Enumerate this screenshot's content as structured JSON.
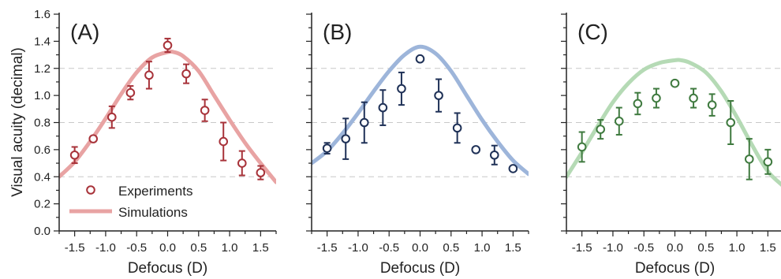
{
  "figure": {
    "ylabel": "Visual acuity (decimal)",
    "legend": {
      "experiments": "Experiments",
      "simulations": "Simulations",
      "placement": "bottom-left of panel A"
    }
  },
  "chart_data": [
    {
      "type": "line",
      "panel_label": "(A)",
      "xlabel": "Defocus (D)",
      "ylabel": "Visual acuity (decimal)",
      "xlim": [
        -1.75,
        1.75
      ],
      "ylim": [
        0,
        1.6
      ],
      "x_ticks": [
        -1.5,
        -1.0,
        -0.5,
        0.0,
        0.5,
        1.0,
        1.5
      ],
      "x_tick_labels": [
        "-1.5",
        "-1.0",
        "-0.5",
        "0.0",
        "0.5",
        "1.0",
        "1.5"
      ],
      "y_ticks": [
        0,
        0.2,
        0.4,
        0.6,
        0.8,
        1.0,
        1.2,
        1.4,
        1.6
      ],
      "y_tick_labels": [
        "0.0",
        "0.2",
        "0.4",
        "0.6",
        "0.8",
        "1.0",
        "1.2",
        "1.4",
        "1.6"
      ],
      "gridlines_y": [
        0.4,
        0.8,
        1.2
      ],
      "colors": {
        "simulation": "#e8a3a3",
        "experiment": "#a8333a"
      },
      "series": [
        {
          "name": "Experiments",
          "kind": "points-with-error",
          "x": [
            -1.5,
            -1.2,
            -0.9,
            -0.6,
            -0.3,
            0.0,
            0.3,
            0.6,
            0.9,
            1.2,
            1.5
          ],
          "y": [
            0.56,
            0.68,
            0.84,
            1.02,
            1.15,
            1.37,
            1.16,
            0.89,
            0.66,
            0.5,
            0.43
          ],
          "err": [
            0.06,
            0.02,
            0.08,
            0.05,
            0.1,
            0.05,
            0.07,
            0.08,
            0.14,
            0.09,
            0.05
          ]
        },
        {
          "name": "Simulations",
          "kind": "curve",
          "x": [
            -1.75,
            -1.5,
            -1.25,
            -1.0,
            -0.75,
            -0.5,
            -0.25,
            0.0,
            0.1,
            0.25,
            0.5,
            0.75,
            1.0,
            1.25,
            1.5,
            1.75
          ],
          "y": [
            0.4,
            0.51,
            0.66,
            0.83,
            1.01,
            1.17,
            1.28,
            1.32,
            1.32,
            1.29,
            1.18,
            1.0,
            0.82,
            0.65,
            0.5,
            0.36
          ]
        }
      ]
    },
    {
      "type": "line",
      "panel_label": "(B)",
      "xlabel": "Defocus (D)",
      "xlim": [
        -1.75,
        1.75
      ],
      "ylim": [
        0,
        1.6
      ],
      "x_ticks": [
        -1.5,
        -1.0,
        -0.5,
        0.0,
        0.5,
        1.0,
        1.5
      ],
      "x_tick_labels": [
        "-1.5",
        "-1.0",
        "-0.5",
        "0.0",
        "0.5",
        "1.0",
        "1.5"
      ],
      "gridlines_y": [
        0.4,
        0.8,
        1.2
      ],
      "colors": {
        "simulation": "#9db5da",
        "experiment": "#1f3157"
      },
      "series": [
        {
          "name": "Experiments",
          "kind": "points-with-error",
          "x": [
            -1.5,
            -1.2,
            -0.9,
            -0.6,
            -0.3,
            0.0,
            0.3,
            0.6,
            0.9,
            1.2,
            1.5
          ],
          "y": [
            0.61,
            0.68,
            0.8,
            0.91,
            1.05,
            1.27,
            1.0,
            0.76,
            0.6,
            0.56,
            0.46
          ],
          "err": [
            0.04,
            0.15,
            0.15,
            0.13,
            0.12,
            0.0,
            0.12,
            0.11,
            0.0,
            0.07,
            0.0
          ]
        },
        {
          "name": "Simulations",
          "kind": "curve",
          "x": [
            -1.75,
            -1.5,
            -1.25,
            -1.0,
            -0.75,
            -0.5,
            -0.25,
            0.0,
            0.25,
            0.5,
            0.75,
            1.0,
            1.25,
            1.5,
            1.75
          ],
          "y": [
            0.5,
            0.59,
            0.72,
            0.87,
            1.03,
            1.18,
            1.3,
            1.36,
            1.31,
            1.18,
            1.0,
            0.82,
            0.66,
            0.52,
            0.42
          ]
        }
      ]
    },
    {
      "type": "line",
      "panel_label": "(C)",
      "xlabel": "Defocus (D)",
      "xlim": [
        -1.75,
        1.75
      ],
      "ylim": [
        0,
        1.6
      ],
      "x_ticks": [
        -1.5,
        -1.0,
        -0.5,
        0.0,
        0.5,
        1.0,
        1.5
      ],
      "x_tick_labels": [
        "-1.5",
        "-1.0",
        "-0.5",
        "0.0",
        "0.5",
        "1.0",
        "1.5"
      ],
      "gridlines_y": [
        0.4,
        0.8,
        1.2
      ],
      "colors": {
        "simulation": "#b5dab5",
        "experiment": "#3f7a3f"
      },
      "series": [
        {
          "name": "Experiments",
          "kind": "points-with-error",
          "x": [
            -1.5,
            -1.2,
            -0.9,
            -0.6,
            -0.3,
            0.0,
            0.3,
            0.6,
            0.9,
            1.2,
            1.5
          ],
          "y": [
            0.62,
            0.75,
            0.81,
            0.94,
            0.98,
            1.09,
            0.98,
            0.93,
            0.8,
            0.53,
            0.51
          ],
          "err": [
            0.11,
            0.07,
            0.1,
            0.08,
            0.07,
            0.0,
            0.07,
            0.08,
            0.16,
            0.15,
            0.09
          ]
        },
        {
          "name": "Simulations",
          "kind": "curve",
          "x": [
            -1.75,
            -1.5,
            -1.25,
            -1.0,
            -0.75,
            -0.5,
            -0.25,
            0.0,
            0.1,
            0.25,
            0.5,
            0.75,
            1.0,
            1.25,
            1.5,
            1.75
          ],
          "y": [
            0.4,
            0.58,
            0.77,
            0.95,
            1.09,
            1.19,
            1.24,
            1.26,
            1.26,
            1.24,
            1.17,
            1.03,
            0.84,
            0.63,
            0.44,
            0.33
          ]
        }
      ]
    }
  ]
}
